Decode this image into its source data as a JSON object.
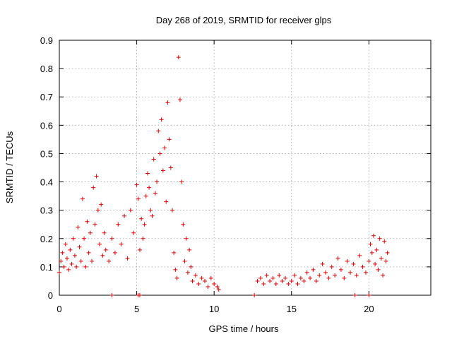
{
  "chart_data": {
    "type": "scatter",
    "title": "Day 268 of 2019, SRMTID for receiver glps",
    "xlabel": "GPS time / hours",
    "ylabel": "SRMTID / TECUs",
    "xlim": [
      0,
      24
    ],
    "ylim": [
      0,
      0.9
    ],
    "xticks": [
      0,
      5,
      10,
      15,
      20
    ],
    "xtick_labels": [
      "0",
      "5",
      "10",
      "15",
      "20"
    ],
    "yticks": [
      0,
      0.1,
      0.2,
      0.3,
      0.4,
      0.5,
      0.6,
      0.7,
      0.8,
      0.9
    ],
    "ytick_labels": [
      "0",
      "0.1",
      "0.2",
      "0.3",
      "0.4",
      "0.5",
      "0.6",
      "0.7",
      "0.8",
      "0.9"
    ],
    "grid": true,
    "marker": "+",
    "series": [
      {
        "name": "SRMTID",
        "color": "#e00000",
        "x": [
          0.0,
          0.1,
          0.2,
          0.3,
          0.4,
          0.5,
          0.6,
          0.7,
          0.8,
          0.9,
          1.0,
          1.1,
          1.2,
          1.3,
          1.4,
          1.5,
          1.6,
          1.7,
          1.8,
          1.9,
          2.0,
          2.1,
          2.2,
          2.3,
          2.4,
          2.5,
          2.6,
          2.7,
          2.8,
          2.9,
          3.0,
          3.2,
          3.4,
          3.6,
          3.8,
          4.0,
          4.2,
          4.4,
          4.6,
          4.8,
          5.0,
          5.1,
          5.2,
          5.3,
          5.4,
          5.5,
          5.6,
          5.7,
          5.8,
          5.9,
          6.0,
          6.1,
          6.2,
          6.3,
          6.4,
          6.5,
          6.6,
          6.7,
          6.8,
          6.9,
          7.0,
          7.1,
          7.2,
          7.3,
          7.4,
          7.5,
          7.6,
          7.7,
          7.8,
          7.9,
          8.0,
          8.1,
          8.2,
          8.3,
          8.4,
          8.5,
          8.6,
          8.8,
          9.0,
          9.2,
          9.4,
          9.6,
          9.8,
          10.0,
          10.2,
          10.3,
          12.8,
          13.0,
          13.2,
          13.4,
          13.6,
          13.8,
          14.0,
          14.2,
          14.4,
          14.6,
          14.8,
          15.0,
          15.2,
          15.4,
          15.6,
          15.8,
          16.0,
          16.2,
          16.4,
          16.6,
          16.8,
          17.0,
          17.2,
          17.4,
          17.6,
          17.8,
          18.0,
          18.2,
          18.4,
          18.6,
          18.8,
          19.0,
          19.2,
          19.4,
          19.6,
          19.8,
          20.0,
          20.1,
          20.2,
          20.3,
          20.4,
          20.5,
          20.6,
          20.7,
          20.8,
          20.9,
          21.0,
          21.1,
          21.2,
          3.4,
          5.1,
          5.2,
          12.6,
          19.1,
          20.0
        ],
        "y": [
          0.08,
          0.12,
          0.15,
          0.1,
          0.18,
          0.13,
          0.09,
          0.16,
          0.11,
          0.2,
          0.14,
          0.1,
          0.24,
          0.17,
          0.12,
          0.34,
          0.2,
          0.1,
          0.26,
          0.15,
          0.22,
          0.12,
          0.38,
          0.25,
          0.42,
          0.3,
          0.18,
          0.32,
          0.14,
          0.22,
          0.16,
          0.12,
          0.2,
          0.15,
          0.25,
          0.18,
          0.28,
          0.13,
          0.3,
          0.22,
          0.39,
          0.34,
          0.16,
          0.27,
          0.2,
          0.25,
          0.35,
          0.43,
          0.38,
          0.3,
          0.28,
          0.48,
          0.36,
          0.4,
          0.58,
          0.5,
          0.62,
          0.44,
          0.52,
          0.33,
          0.68,
          0.55,
          0.45,
          0.3,
          0.15,
          0.09,
          0.06,
          0.84,
          0.69,
          0.4,
          0.25,
          0.12,
          0.2,
          0.08,
          0.16,
          0.1,
          0.05,
          0.07,
          0.04,
          0.06,
          0.05,
          0.03,
          0.06,
          0.04,
          0.03,
          0.02,
          0.05,
          0.06,
          0.04,
          0.07,
          0.05,
          0.06,
          0.04,
          0.07,
          0.05,
          0.06,
          0.04,
          0.05,
          0.07,
          0.04,
          0.06,
          0.05,
          0.08,
          0.06,
          0.09,
          0.05,
          0.07,
          0.11,
          0.08,
          0.06,
          0.1,
          0.07,
          0.13,
          0.09,
          0.06,
          0.12,
          0.08,
          0.11,
          0.07,
          0.14,
          0.1,
          0.08,
          0.12,
          0.18,
          0.15,
          0.21,
          0.11,
          0.16,
          0.09,
          0.2,
          0.13,
          0.07,
          0.19,
          0.12,
          0.15,
          0.0,
          0.0,
          0.0,
          0.0,
          0.0,
          0.0
        ]
      }
    ]
  }
}
